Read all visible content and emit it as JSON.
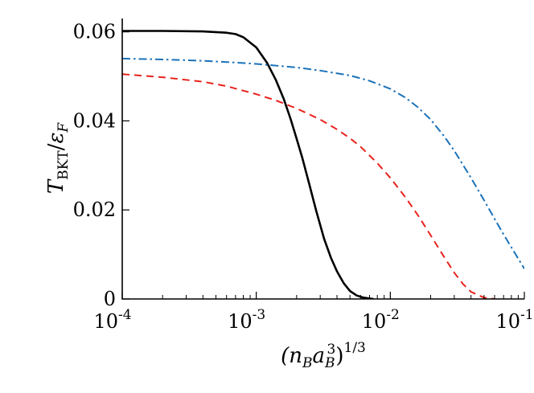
{
  "chart_data": {
    "type": "line",
    "xlabel": "(n_B a_B^3)^1/3",
    "ylabel": "T_BKT/ε_F",
    "x_scale": "log",
    "xlim": [
      0.0001,
      0.1
    ],
    "ylim": [
      0,
      0.063
    ],
    "x_ticks": [
      {
        "value": 0.0001,
        "base": "10",
        "exp": "-4"
      },
      {
        "value": 0.001,
        "base": "10",
        "exp": "-3"
      },
      {
        "value": 0.01,
        "base": "10",
        "exp": "-2"
      },
      {
        "value": 0.1,
        "base": "10",
        "exp": "-1"
      }
    ],
    "y_ticks": [
      {
        "value": 0,
        "label": "0"
      },
      {
        "value": 0.02,
        "label": "0.02"
      },
      {
        "value": 0.04,
        "label": "0.04"
      },
      {
        "value": 0.06,
        "label": "0.06"
      }
    ],
    "grid": false,
    "legend": "none",
    "series": [
      {
        "style": "solid",
        "color": "#000000",
        "x": [
          0.0001,
          0.0002,
          0.0004,
          0.0006,
          0.0007,
          0.0008,
          0.001,
          0.0012,
          0.0014,
          0.0016,
          0.0018,
          0.002,
          0.0022,
          0.0025,
          0.0028,
          0.0032,
          0.0036,
          0.004,
          0.0045,
          0.005,
          0.0056,
          0.0063,
          0.007,
          0.0075
        ],
        "y": [
          0.0602,
          0.0602,
          0.0601,
          0.0598,
          0.0595,
          0.0588,
          0.0565,
          0.0531,
          0.0492,
          0.045,
          0.0405,
          0.036,
          0.0318,
          0.0255,
          0.0198,
          0.0136,
          0.0093,
          0.0062,
          0.0035,
          0.0018,
          0.0008,
          0.0003,
          0.0001,
          0.0
        ]
      },
      {
        "style": "dashed",
        "color": "#e8221c",
        "x": [
          0.0001,
          0.0002,
          0.0004,
          0.0006,
          0.001,
          0.0014,
          0.002,
          0.003,
          0.004,
          0.005,
          0.006,
          0.008,
          0.01,
          0.013,
          0.016,
          0.02,
          0.025,
          0.03,
          0.035,
          0.04,
          0.05,
          0.06
        ],
        "y": [
          0.0505,
          0.0498,
          0.0488,
          0.0478,
          0.046,
          0.0446,
          0.0428,
          0.0403,
          0.0381,
          0.0361,
          0.0342,
          0.0305,
          0.0272,
          0.0228,
          0.0189,
          0.0143,
          0.0096,
          0.0059,
          0.0033,
          0.0016,
          0.0003,
          0.0
        ]
      },
      {
        "style": "dashdot",
        "color": "#1a72ba",
        "x": [
          0.0001,
          0.0002,
          0.0004,
          0.0007,
          0.001,
          0.002,
          0.003,
          0.005,
          0.007,
          0.01,
          0.013,
          0.016,
          0.02,
          0.025,
          0.03,
          0.04,
          0.05,
          0.06,
          0.07,
          0.08,
          0.1
        ],
        "y": [
          0.054,
          0.0538,
          0.0535,
          0.0531,
          0.0528,
          0.052,
          0.0513,
          0.0502,
          0.049,
          0.0472,
          0.0452,
          0.0431,
          0.0403,
          0.0367,
          0.0333,
          0.0272,
          0.0222,
          0.018,
          0.0145,
          0.0116,
          0.0068
        ]
      }
    ]
  }
}
